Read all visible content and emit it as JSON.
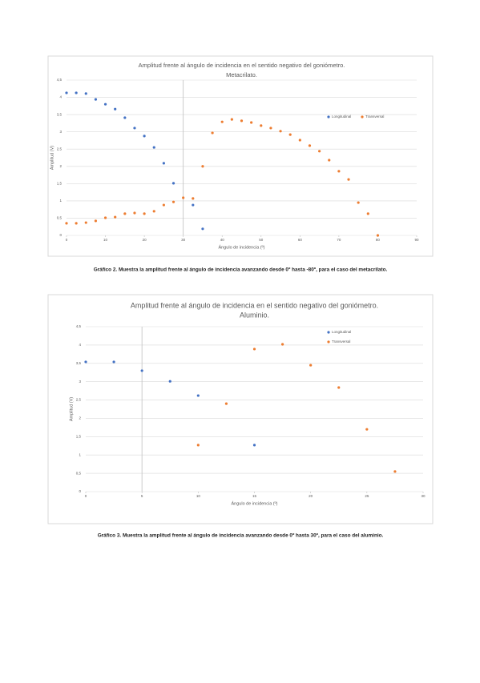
{
  "chart_data": [
    {
      "type": "scatter",
      "title": [
        "Amplitud frente al ángulo de incidencia en el sentido negativo del goniómetro.",
        "Metacrilato."
      ],
      "x_label": "Ángulo de incidencia (º)",
      "y_label": "Amplitud (V)",
      "xlim": [
        0,
        90
      ],
      "xticks": [
        0,
        10,
        20,
        30,
        40,
        50,
        60,
        70,
        80,
        90
      ],
      "ylim": [
        0,
        4.5
      ],
      "yticks": [
        0,
        {
          "value": 0.5,
          "label": "0,5"
        },
        1,
        {
          "value": 1.5,
          "label": "1,5"
        },
        2,
        {
          "value": 2.5,
          "label": "2,5"
        },
        3,
        {
          "value": 3.5,
          "label": "3,5"
        },
        4,
        {
          "value": 4.5,
          "label": "4,5"
        }
      ],
      "grid": true,
      "y_axis_at": 30,
      "legend": "upper-right",
      "series": [
        {
          "name": "Longitudinal",
          "color": "#4472c4",
          "x": [
            0,
            2.5,
            5,
            7.5,
            10,
            12.5,
            15,
            17.5,
            20,
            22.5,
            25,
            27.5,
            32.5,
            35
          ],
          "values": [
            4.13,
            4.13,
            4.11,
            3.94,
            3.8,
            3.66,
            3.41,
            3.11,
            2.88,
            2.55,
            2.09,
            1.51,
            0.88,
            0.19
          ]
        },
        {
          "name": "Transversal",
          "color": "#ed7d31",
          "x": [
            0,
            2.5,
            5,
            7.5,
            10,
            12.5,
            15,
            17.5,
            20,
            22.5,
            25,
            27.5,
            30,
            32.5,
            35,
            37.5,
            40,
            42.5,
            45,
            47.5,
            50,
            52.5,
            55,
            57.5,
            60,
            62.5,
            65,
            67.5,
            70,
            72.5,
            75,
            77.5,
            80
          ],
          "values": [
            0.35,
            0.35,
            0.37,
            0.42,
            0.51,
            0.53,
            0.63,
            0.65,
            0.63,
            0.7,
            0.88,
            0.97,
            1.09,
            1.07,
            2.0,
            2.97,
            3.29,
            3.36,
            3.32,
            3.27,
            3.18,
            3.11,
            3.02,
            2.92,
            2.76,
            2.6,
            2.44,
            2.18,
            1.86,
            1.62,
            0.95,
            0.63,
            0
          ]
        }
      ]
    },
    {
      "type": "scatter",
      "title": [
        "Amplitud frente al ángulo de incidencia en el sentido negativo del goniómetro.",
        "Aluminio."
      ],
      "x_label": "Ángulo de incidencia (º)",
      "y_label": "Amplitud (V)",
      "xlim": [
        0,
        30
      ],
      "xticks": [
        0,
        5,
        10,
        15,
        20,
        25,
        30
      ],
      "ylim": [
        0,
        4.5
      ],
      "yticks": [
        0,
        {
          "value": 0.5,
          "label": "0,5"
        },
        1,
        {
          "value": 1.5,
          "label": "1,5"
        },
        2,
        {
          "value": 2.5,
          "label": "2,5"
        },
        3,
        {
          "value": 3.5,
          "label": "3,5"
        },
        4,
        {
          "value": 4.5,
          "label": "4,5"
        }
      ],
      "grid": true,
      "y_axis_at": 5,
      "legend": "upper-right",
      "series": [
        {
          "name": "Longitudinal",
          "color": "#4472c4",
          "x": [
            0,
            2.5,
            5,
            7.5,
            10,
            15
          ],
          "values": [
            3.54,
            3.54,
            3.3,
            3.01,
            2.62,
            1.27
          ]
        },
        {
          "name": "Transversal",
          "color": "#ed7d31",
          "x": [
            10,
            12.5,
            15,
            17.5,
            20,
            22.5,
            25,
            27.5
          ],
          "values": [
            1.27,
            2.4,
            3.89,
            4.02,
            3.45,
            2.84,
            1.7,
            0.55
          ]
        }
      ]
    }
  ],
  "captions": [
    "Gráfico 2. Muestra la amplitud frente al ángulo de incidencia avanzando desde 0º hasta -80º, para el caso del metacrilato.",
    "Gráfico 3. Muestra la amplitud frente al ángulo de incidencia avanzando desde 0º hasta 30º, para el caso del aluminio."
  ]
}
